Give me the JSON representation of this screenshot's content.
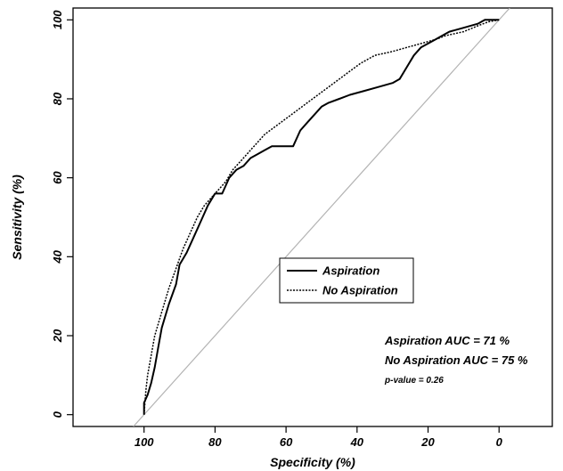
{
  "chart_data": {
    "type": "line",
    "title": "",
    "xlabel": "Specificity (%)",
    "ylabel": "Sensitivity (%)",
    "x_reversed": true,
    "xlim": [
      120,
      -15
    ],
    "ylim": [
      -3,
      103
    ],
    "x_ticks": [
      100,
      80,
      60,
      40,
      20,
      0
    ],
    "y_ticks": [
      0,
      20,
      40,
      60,
      80,
      100
    ],
    "grid": false,
    "legend": {
      "placement": "center-right",
      "entries": [
        {
          "label": "Aspiration",
          "style": "solid"
        },
        {
          "label": "No Aspiration",
          "style": "dotted"
        }
      ]
    },
    "annotations": {
      "auc_aspiration": "Aspiration AUC = 71 %",
      "auc_no_aspiration": "No Aspiration AUC = 75 %",
      "p_value": "p-value = 0.26"
    },
    "reference_line": {
      "from": [
        100,
        0
      ],
      "to": [
        0,
        100
      ],
      "color": "#b3b3b3"
    },
    "series": [
      {
        "name": "Aspiration",
        "style": "solid",
        "points": [
          [
            100,
            0
          ],
          [
            100,
            3
          ],
          [
            99,
            5
          ],
          [
            98,
            8
          ],
          [
            97,
            12
          ],
          [
            96,
            17
          ],
          [
            95,
            22
          ],
          [
            93,
            28
          ],
          [
            91,
            33
          ],
          [
            90,
            38
          ],
          [
            88,
            41
          ],
          [
            86,
            45
          ],
          [
            84,
            49
          ],
          [
            82,
            53
          ],
          [
            80,
            56
          ],
          [
            78,
            56
          ],
          [
            77,
            58
          ],
          [
            76,
            60
          ],
          [
            74,
            62
          ],
          [
            72,
            63
          ],
          [
            70,
            65
          ],
          [
            68,
            66
          ],
          [
            66,
            67
          ],
          [
            64,
            68
          ],
          [
            60,
            68
          ],
          [
            58,
            68
          ],
          [
            56,
            72
          ],
          [
            54,
            74
          ],
          [
            52,
            76
          ],
          [
            50,
            78
          ],
          [
            48,
            79
          ],
          [
            45,
            80
          ],
          [
            42,
            81
          ],
          [
            38,
            82
          ],
          [
            34,
            83
          ],
          [
            30,
            84
          ],
          [
            28,
            85
          ],
          [
            26,
            88
          ],
          [
            24,
            91
          ],
          [
            22,
            93
          ],
          [
            20,
            94
          ],
          [
            18,
            95
          ],
          [
            16,
            96
          ],
          [
            14,
            97
          ],
          [
            10,
            98
          ],
          [
            6,
            99
          ],
          [
            4,
            100
          ],
          [
            0,
            100
          ]
        ]
      },
      {
        "name": "No Aspiration",
        "style": "dotted",
        "points": [
          [
            100,
            0
          ],
          [
            99.5,
            6
          ],
          [
            99,
            10
          ],
          [
            98,
            15
          ],
          [
            97,
            20
          ],
          [
            95,
            26
          ],
          [
            93,
            32
          ],
          [
            91,
            37
          ],
          [
            89,
            42
          ],
          [
            87,
            46
          ],
          [
            85,
            50
          ],
          [
            83,
            53
          ],
          [
            80,
            56
          ],
          [
            77,
            59
          ],
          [
            75,
            62
          ],
          [
            72,
            65
          ],
          [
            69,
            68
          ],
          [
            66,
            71
          ],
          [
            63,
            73
          ],
          [
            60,
            75
          ],
          [
            57,
            77
          ],
          [
            54,
            79
          ],
          [
            51,
            81
          ],
          [
            48,
            83
          ],
          [
            45,
            85
          ],
          [
            42,
            87
          ],
          [
            39,
            89
          ],
          [
            35,
            91
          ],
          [
            30,
            92
          ],
          [
            26,
            93
          ],
          [
            22,
            94
          ],
          [
            18,
            95
          ],
          [
            15,
            96
          ],
          [
            10,
            97
          ],
          [
            6,
            98.5
          ],
          [
            3,
            99.5
          ],
          [
            0,
            100
          ]
        ]
      }
    ]
  }
}
